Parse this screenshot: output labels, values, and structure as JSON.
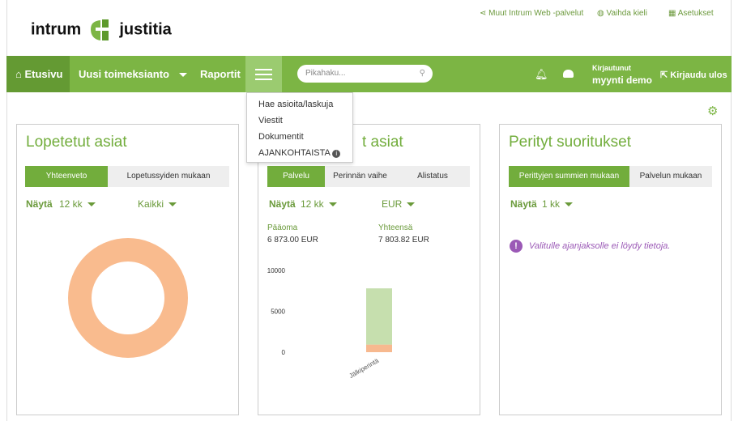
{
  "header": {
    "logo_left": "intrum",
    "logo_right": "justitia",
    "links": [
      "Muut Intrum Web -palvelut",
      "Vaihda kieli",
      "Asetukset"
    ]
  },
  "nav": {
    "items": [
      "Etusivu",
      "Uusi toimeksianto",
      "Raportit"
    ],
    "search_placeholder": "Pikahaku...",
    "user_label": "Kirjautunut",
    "user_name": "myynti demo",
    "logout": "Kirjaudu ulos"
  },
  "menu": [
    "Hae asioita/laskuja",
    "Viestit",
    "Dokumentit",
    "AJANKOHTAISTA"
  ],
  "panels": [
    {
      "title": "Lopetetut asiat",
      "tabs": [
        "Yhteenveto",
        "Lopetussyiden mukaan"
      ],
      "filter_label": "Näytä",
      "filters": [
        "12 kk",
        "Kaikki"
      ]
    },
    {
      "title": "t asiat",
      "tabs": [
        "Palvelu",
        "Perinnän vaihe",
        "Alistatus"
      ],
      "filter_label": "Näytä",
      "filters": [
        "12 kk",
        "EUR"
      ],
      "summary": [
        {
          "label": "Pääoma",
          "value": "6 873.00 EUR"
        },
        {
          "label": "Yhteensä",
          "value": "7 803.82 EUR"
        }
      ],
      "chart": {
        "type": "bar",
        "categories": [
          "Jälkiperintä"
        ],
        "series": [
          {
            "color": "#f7b98f",
            "values": [
              930.82
            ]
          },
          {
            "color": "#c6dfae",
            "values": [
              6873
            ]
          }
        ],
        "ylim": [
          0,
          10000
        ],
        "yticks": [
          0,
          5000,
          10000
        ]
      }
    },
    {
      "title": "Perityt suoritukset",
      "tabs": [
        "Perittyjen summien mukaan",
        "Palvelun mukaan"
      ],
      "filter_label": "Näytä",
      "filters": [
        "1 kk"
      ],
      "message": "Valitulle ajanjaksolle ei löydy tietoja."
    }
  ]
}
